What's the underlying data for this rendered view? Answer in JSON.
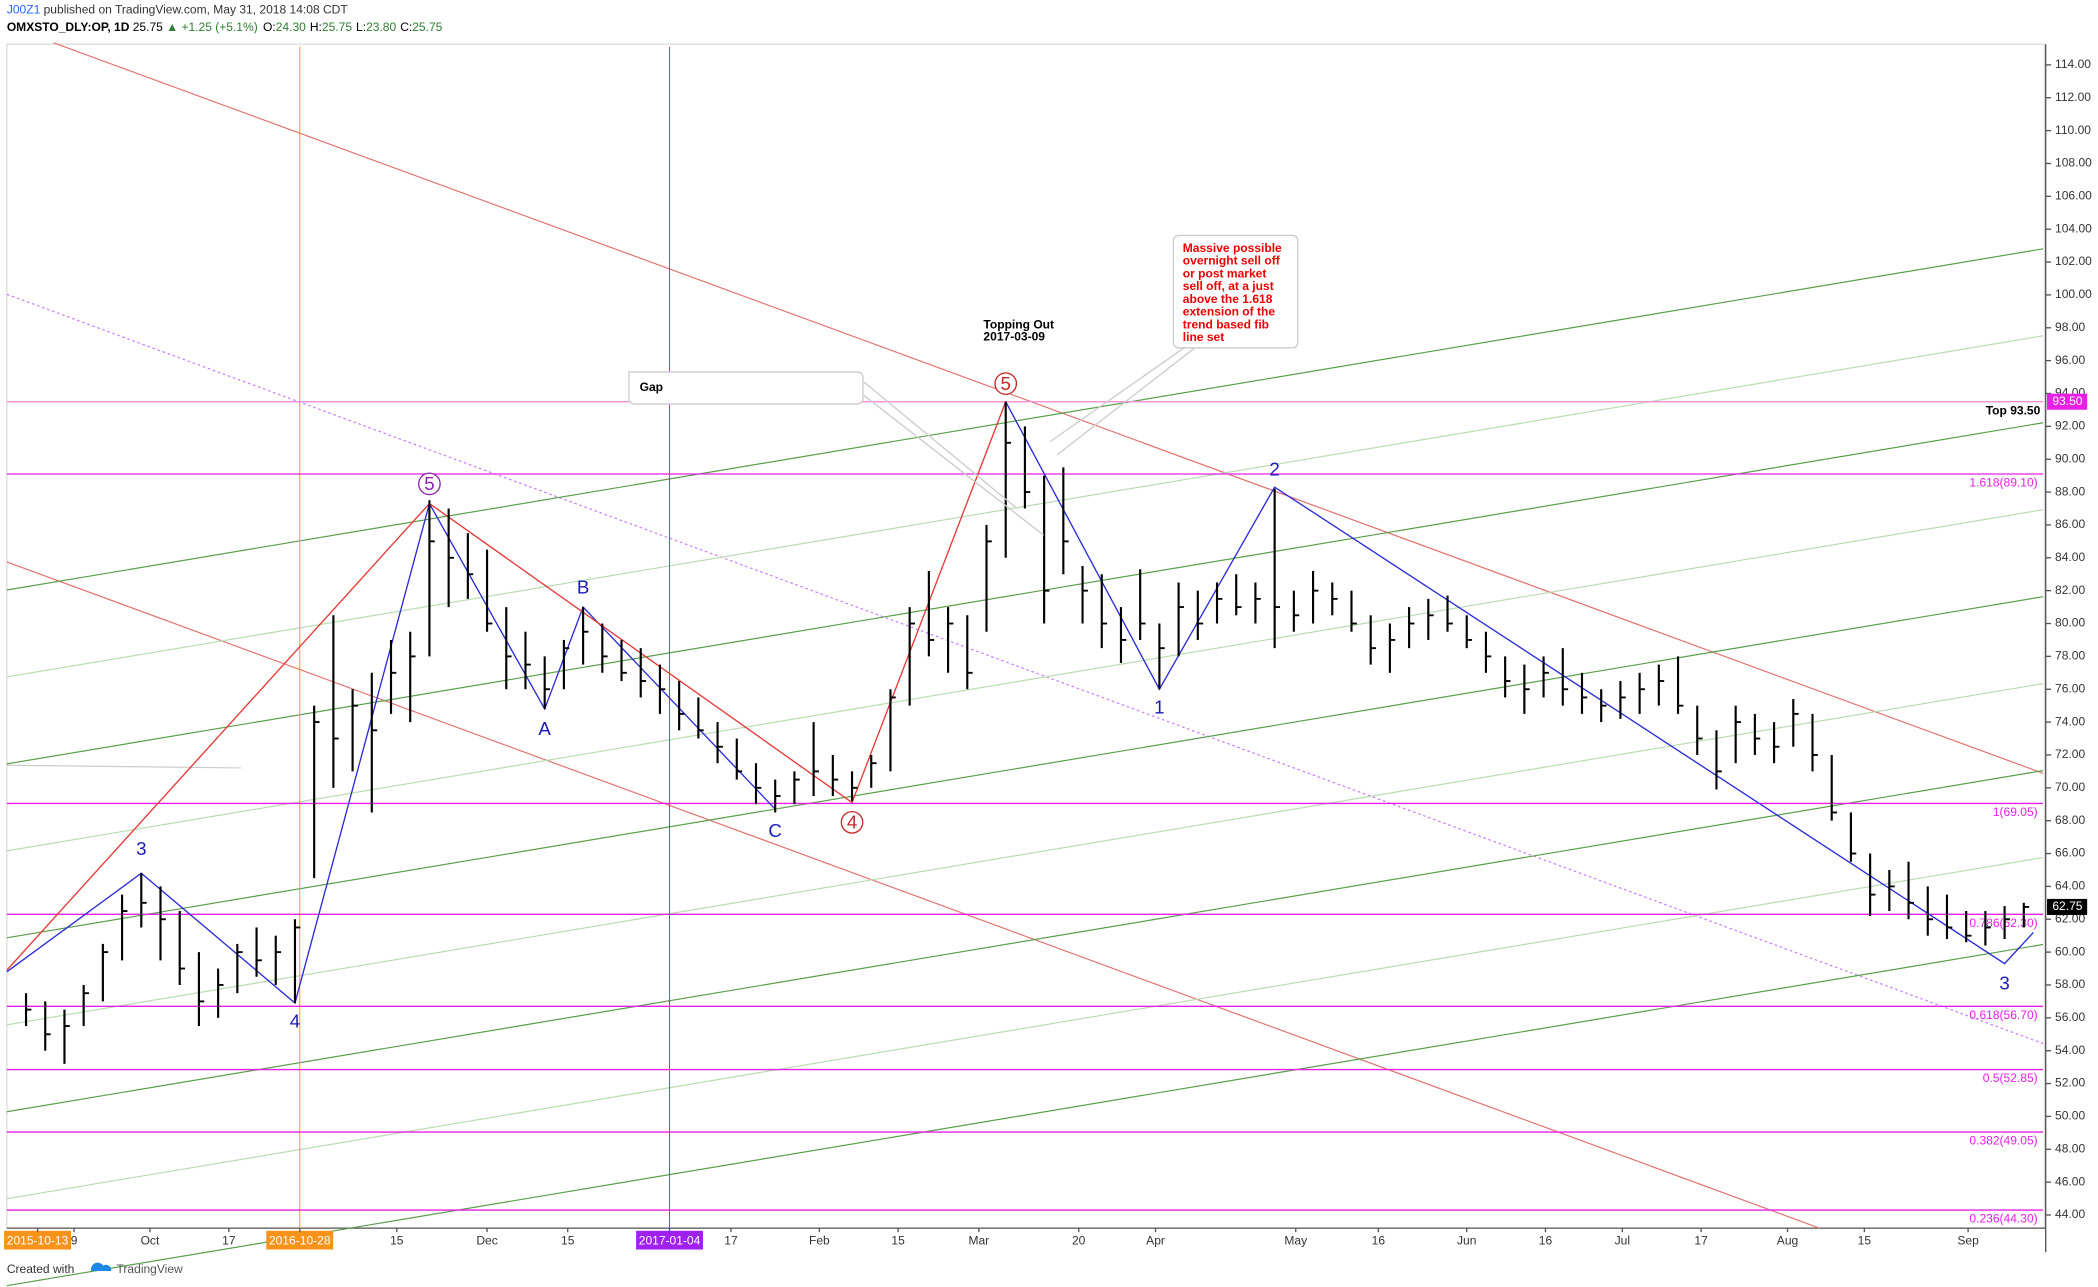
{
  "header": {
    "author": "J00Z1",
    "published": "published on TradingView.com, May 31, 2018 14:08 CDT",
    "symbol": "OMXSTO_DLY:OP, 1D",
    "last": "25.75",
    "change": "▲ +1.25 (+5.1%)",
    "ohlc_labels": [
      "O:",
      "H:",
      "L:",
      "C:"
    ],
    "ohlc_values": [
      "24.30",
      "25.75",
      "23.80",
      "25.75"
    ]
  },
  "footer": {
    "created": "Created with",
    "brand": "TradingView"
  },
  "chart_data": {
    "type": "hlc",
    "color": "#000000",
    "xlim": [
      -1,
      105
    ],
    "ylim": [
      43.2,
      115.1
    ],
    "yticks": [
      {
        "value": 44,
        "label": "44.00"
      },
      {
        "value": 46,
        "label": "46.00"
      },
      {
        "value": 48,
        "label": "48.00"
      },
      {
        "value": 50,
        "label": "50.00"
      },
      {
        "value": 52,
        "label": "52.00"
      },
      {
        "value": 54,
        "label": "54.00"
      },
      {
        "value": 56,
        "label": "56.00"
      },
      {
        "value": 58,
        "label": "58.00"
      },
      {
        "value": 60,
        "label": "60.00"
      },
      {
        "value": 62,
        "label": "62.00"
      },
      {
        "value": 64,
        "label": "64.00"
      },
      {
        "value": 66,
        "label": "66.00"
      },
      {
        "value": 68,
        "label": "68.00"
      },
      {
        "value": 70,
        "label": "70.00"
      },
      {
        "value": 72,
        "label": "72.00"
      },
      {
        "value": 74,
        "label": "74.00"
      },
      {
        "value": 76,
        "label": "76.00"
      },
      {
        "value": 78,
        "label": "78.00"
      },
      {
        "value": 80,
        "label": "80.00"
      },
      {
        "value": 82,
        "label": "82.00"
      },
      {
        "value": 84,
        "label": "84.00"
      },
      {
        "value": 86,
        "label": "86.00"
      },
      {
        "value": 88,
        "label": "88.00"
      },
      {
        "value": 90,
        "label": "90.00"
      },
      {
        "value": 92,
        "label": "92.00"
      },
      {
        "value": 94,
        "label": "94.00"
      },
      {
        "value": 96,
        "label": "96.00"
      },
      {
        "value": 98,
        "label": "98.00"
      },
      {
        "value": 100,
        "label": "100.00"
      },
      {
        "value": 102,
        "label": "102.00"
      },
      {
        "value": 104,
        "label": "104.00"
      },
      {
        "value": 106,
        "label": "106.00"
      },
      {
        "value": 108,
        "label": "108.00"
      },
      {
        "value": 110,
        "label": "110.00"
      },
      {
        "value": 112,
        "label": "112.00"
      },
      {
        "value": 114,
        "label": "114.00"
      }
    ],
    "xticks": [
      {
        "value": 0.6,
        "label": "2015-10-13",
        "highlight": "#f7931a"
      },
      {
        "value": 2.5,
        "label": "9"
      },
      {
        "value": 6.45,
        "label": "Oct"
      },
      {
        "value": 10.56,
        "label": "17"
      },
      {
        "value": 14.25,
        "label": "2016-10-28",
        "highlight": "#f7931a"
      },
      {
        "value": 19.3,
        "label": "15"
      },
      {
        "value": 24,
        "label": "Dec"
      },
      {
        "value": 28.2,
        "label": "15"
      },
      {
        "value": 33.5,
        "label": "2017-01-04",
        "highlight": "#a020f0"
      },
      {
        "value": 36.7,
        "label": "17"
      },
      {
        "value": 41.3,
        "label": "Feb"
      },
      {
        "value": 45.4,
        "label": "15"
      },
      {
        "value": 49.6,
        "label": "Mar"
      },
      {
        "value": 54.8,
        "label": "20"
      },
      {
        "value": 58.8,
        "label": "Apr"
      },
      {
        "value": 66.1,
        "label": "May"
      },
      {
        "value": 70.4,
        "label": "16"
      },
      {
        "value": 75,
        "label": "Jun"
      },
      {
        "value": 79.1,
        "label": "16"
      },
      {
        "value": 83.1,
        "label": "Jul"
      },
      {
        "value": 87.2,
        "label": "17"
      },
      {
        "value": 91.7,
        "label": "Aug"
      },
      {
        "value": 95.7,
        "label": "15"
      },
      {
        "value": 101.1,
        "label": "Sep"
      }
    ],
    "high": [
      57.5,
      57,
      56.5,
      58,
      60.5,
      63.5,
      64.8,
      64,
      62.5,
      60,
      59,
      60.5,
      61.5,
      61,
      62,
      75,
      80.5,
      76,
      77,
      79,
      79.5,
      87.5,
      87,
      85.5,
      84.5,
      81,
      79.5,
      78,
      79,
      81,
      80,
      79,
      78.5,
      77.5,
      76.5,
      75.5,
      74,
      73,
      71.5,
      70.5,
      71,
      74,
      72,
      71,
      72,
      76,
      81,
      83.2,
      81,
      80.5,
      86,
      93.5,
      92,
      89,
      89.5,
      83.5,
      83,
      81,
      83.3,
      80,
      82.5,
      82,
      82.5,
      83,
      82.5,
      88.2,
      82,
      83.2,
      82.5,
      82,
      80.5,
      80,
      81,
      81.5,
      81.7,
      80.5,
      79.5,
      78,
      77.5,
      78,
      78.5,
      77,
      76,
      76.5,
      77,
      77.5,
      78,
      75,
      73.5,
      75,
      74.5,
      74,
      75.4,
      74.5,
      72,
      68.5,
      66,
      65,
      65.5,
      64,
      63.5,
      62.5,
      62.5,
      62.8,
      63
    ],
    "low": [
      55.5,
      54,
      53.2,
      55.5,
      57,
      59.5,
      61.5,
      59.5,
      58,
      55.5,
      56,
      57.5,
      58.5,
      58,
      56.9,
      64.5,
      70,
      71,
      68.5,
      74.5,
      74,
      78,
      81,
      81.5,
      79.5,
      76,
      76,
      74.8,
      76,
      77.5,
      77,
      76.5,
      75.5,
      74.5,
      73.5,
      73,
      71.5,
      70.5,
      69,
      68.5,
      69,
      69.5,
      69.5,
      69.2,
      70,
      71,
      75,
      78,
      77,
      76,
      79.5,
      84,
      87,
      80,
      83,
      80,
      78.5,
      77.6,
      79,
      76,
      78,
      79,
      80,
      80.5,
      80,
      78.5,
      79.5,
      80,
      80.5,
      79.5,
      77.5,
      77,
      78.5,
      79,
      79.5,
      78.5,
      77,
      75.5,
      74.5,
      75.5,
      75,
      74.5,
      74,
      74.2,
      74.5,
      75,
      74.5,
      72,
      69.9,
      71.5,
      72,
      71.5,
      72.5,
      71,
      68,
      65.5,
      62.2,
      62.5,
      62,
      61,
      60.8,
      60.6,
      60.4,
      60.8,
      61.5
    ],
    "close": [
      56.5,
      55,
      55.5,
      57.5,
      60,
      62.5,
      63,
      62,
      59,
      57,
      58,
      60,
      59.5,
      60,
      61.5,
      74,
      73,
      75,
      73.5,
      77,
      78,
      85,
      84,
      83,
      80,
      78,
      77.5,
      76,
      78.5,
      79.5,
      78,
      77,
      76.5,
      76,
      74.5,
      73.5,
      72.5,
      71,
      70,
      69.5,
      70.5,
      71,
      70.5,
      70,
      71.5,
      75.5,
      80,
      79,
      80,
      77,
      85,
      91,
      88,
      82,
      85,
      82,
      80,
      79,
      80,
      78.5,
      81,
      80,
      81.5,
      81,
      81.5,
      81,
      80.5,
      82,
      81.5,
      80,
      78.5,
      79,
      80,
      80.5,
      80,
      79,
      78,
      76.5,
      76,
      77,
      76,
      75.5,
      75,
      75.5,
      76,
      76.5,
      75,
      73,
      71,
      74,
      73,
      72.5,
      74.5,
      72,
      68.5,
      66,
      63.5,
      64,
      63,
      62,
      61.5,
      61,
      61.5,
      62,
      62.75
    ],
    "last_price": {
      "value": 62.75,
      "label": "62.75"
    },
    "top_line": {
      "value": 93.5,
      "label": "Top 93.50",
      "tag": "93.50"
    },
    "fib_color": "#e91ee9",
    "fib_levels": [
      {
        "value": 89.1,
        "label": "1.618(89.10)"
      },
      {
        "value": 69.05,
        "label": "1(69.05)"
      },
      {
        "value": 62.3,
        "label": "0.786(62.30)"
      },
      {
        "value": 56.7,
        "label": "0.618(56.70)"
      },
      {
        "value": 52.85,
        "label": "0.5(52.85)"
      },
      {
        "value": 49.05,
        "label": "0.382(49.05)"
      },
      {
        "value": 44.3,
        "label": "0.236(44.30)"
      }
    ],
    "wave_lines": [
      {
        "color": "#2b2bd9",
        "points": [
          [
            -1,
            58.8
          ],
          [
            6,
            64.8
          ],
          [
            14,
            56.9
          ],
          [
            21,
            87.3
          ]
        ]
      },
      {
        "color": "#2b2bd9",
        "points": [
          [
            21,
            87.3
          ],
          [
            27,
            74.8
          ],
          [
            29,
            81
          ],
          [
            39,
            68.7
          ]
        ]
      },
      {
        "color": "#e53935",
        "points": [
          [
            -1,
            58.9
          ],
          [
            21,
            87.3
          ],
          [
            43,
            69.1
          ],
          [
            51,
            93.5
          ]
        ]
      },
      {
        "color": "#2b2bd9",
        "points": [
          [
            51,
            93.5
          ],
          [
            59,
            76
          ],
          [
            65,
            88.3
          ],
          [
            103,
            59.3
          ],
          [
            104.5,
            61.2
          ]
        ]
      }
    ],
    "waves": [
      {
        "label": "3",
        "x": 6,
        "y": 66.3,
        "color": "#1a1ab8"
      },
      {
        "label": "4",
        "x": 14,
        "y": 55.8,
        "color": "#1a1ab8"
      },
      {
        "label": "5",
        "x": 21,
        "y": 88.5,
        "color": "#8e24aa",
        "circle": true
      },
      {
        "label": "A",
        "x": 27,
        "y": 73.6,
        "color": "#1a1ab8"
      },
      {
        "label": "B",
        "x": 29,
        "y": 82.2,
        "color": "#1a1ab8"
      },
      {
        "label": "C",
        "x": 39,
        "y": 67.4,
        "color": "#1a1ab8"
      },
      {
        "label": "4",
        "x": 43,
        "y": 67.9,
        "color": "#c62828",
        "circle": true
      },
      {
        "label": "5",
        "x": 51,
        "y": 94.6,
        "color": "#c62828",
        "circle": true
      },
      {
        "label": "1",
        "x": 59,
        "y": 74.9,
        "color": "#1a1ab8"
      },
      {
        "label": "2",
        "x": 65,
        "y": 89.4,
        "color": "#1a1ab8"
      },
      {
        "label": "3",
        "x": 103,
        "y": 58.1,
        "color": "#1a1ab8"
      }
    ],
    "notes": {
      "gap": "Gap",
      "topping": [
        "Topping Out",
        "2017-03-09"
      ],
      "massive": [
        "Massive possible",
        "overnight sell off",
        "or post market",
        "sell off, at a just",
        "above the 1.618",
        "extension of the",
        "trend based fib",
        "line set"
      ]
    }
  }
}
